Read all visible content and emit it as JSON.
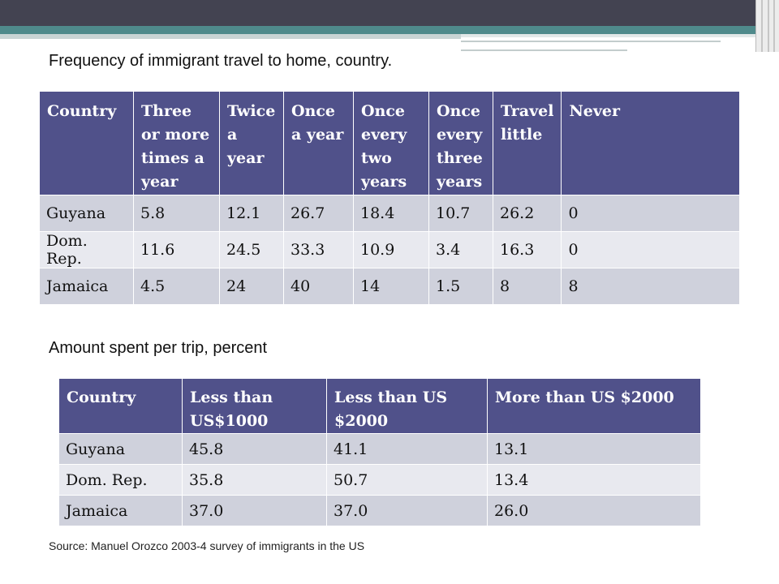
{
  "title1": "Frequency of immigrant travel to home, country.",
  "title2": "Amount spent per trip, percent",
  "source": "Source: Manuel Orozco 2003-4 survey of immigrants in the US",
  "table1": {
    "headers": [
      "Country",
      "Three or more times a year",
      "Twice a year",
      "Once a year",
      "Once every two years",
      "Once every three years",
      "Travel little",
      "Never"
    ],
    "rows": [
      [
        "Guyana",
        "5.8",
        "12.1",
        "26.7",
        "18.4",
        "10.7",
        "26.2",
        "0"
      ],
      [
        "Dom. Rep.",
        "11.6",
        "24.5",
        "33.3",
        "10.9",
        "3.4",
        "16.3",
        "0"
      ],
      [
        "Jamaica",
        "4.5",
        "24",
        "40",
        "14",
        "1.5",
        "8",
        "8"
      ]
    ]
  },
  "table2": {
    "headers": [
      "Country",
      "Less than US$1000",
      "Less than US $2000",
      "More than US $2000"
    ],
    "rows": [
      [
        "Guyana",
        "45.8",
        "41.1",
        "13.1"
      ],
      [
        "Dom. Rep.",
        "35.8",
        "50.7",
        "13.4"
      ],
      [
        "Jamaica",
        "37.0",
        "37.0",
        "26.0"
      ]
    ]
  },
  "colors": {
    "header_fill": "#50518a",
    "row_odd": "#cfd1dc",
    "row_even": "#e8e9ef",
    "top_bar": "#434351",
    "accent_teal": "#4f8a8b"
  }
}
